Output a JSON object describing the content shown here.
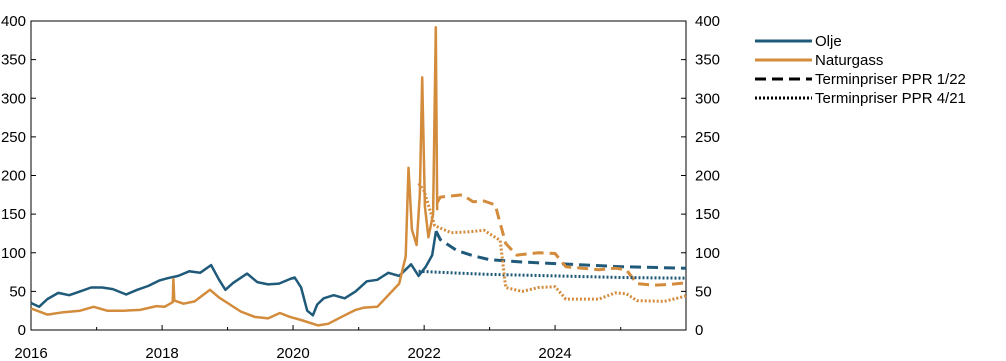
{
  "chart_data": {
    "type": "line",
    "title": "",
    "xlabel": "",
    "ylabel": "",
    "xlim": [
      "2016-01-01",
      "2025-12-31"
    ],
    "ylim": [
      0,
      400
    ],
    "ylim_right": [
      0,
      400
    ],
    "x_ticks": [
      "2016",
      "2018",
      "2020",
      "2022",
      "2024"
    ],
    "y_ticks": [
      "0",
      "50",
      "100",
      "150",
      "200",
      "250",
      "300",
      "350",
      "400"
    ],
    "grid": false,
    "legend_position": "top-right, outside plot",
    "legend": [
      {
        "label": "Olje",
        "color": "#1f5a7a",
        "style": "solid"
      },
      {
        "label": "Naturgass",
        "color": "#d38b3c",
        "style": "solid"
      },
      {
        "label": "Terminpriser PPR 1/22",
        "color": "#000000",
        "style": "dashed"
      },
      {
        "label": "Terminpriser PPR 4/21",
        "color": "#000000",
        "style": "dotted"
      }
    ],
    "series": [
      {
        "name": "Olje",
        "color": "#1f5a7a",
        "style": "solid",
        "points": [
          [
            "2016-01-01",
            35
          ],
          [
            "2016-02-15",
            30
          ],
          [
            "2016-04-01",
            40
          ],
          [
            "2016-06-01",
            48
          ],
          [
            "2016-08-01",
            45
          ],
          [
            "2016-10-01",
            50
          ],
          [
            "2016-12-01",
            55
          ],
          [
            "2017-02-01",
            55
          ],
          [
            "2017-04-01",
            53
          ],
          [
            "2017-06-15",
            46
          ],
          [
            "2017-08-15",
            52
          ],
          [
            "2017-10-15",
            57
          ],
          [
            "2017-12-15",
            64
          ],
          [
            "2018-02-01",
            67
          ],
          [
            "2018-04-01",
            70
          ],
          [
            "2018-06-01",
            76
          ],
          [
            "2018-08-01",
            74
          ],
          [
            "2018-10-01",
            84
          ],
          [
            "2018-11-15",
            65
          ],
          [
            "2018-12-20",
            52
          ],
          [
            "2019-02-01",
            61
          ],
          [
            "2019-04-20",
            73
          ],
          [
            "2019-06-15",
            62
          ],
          [
            "2019-08-15",
            59
          ],
          [
            "2019-10-15",
            60
          ],
          [
            "2019-12-15",
            66
          ],
          [
            "2020-01-10",
            68
          ],
          [
            "2020-02-15",
            55
          ],
          [
            "2020-03-20",
            25
          ],
          [
            "2020-04-21",
            19
          ],
          [
            "2020-05-15",
            33
          ],
          [
            "2020-06-20",
            41
          ],
          [
            "2020-08-15",
            45
          ],
          [
            "2020-10-15",
            41
          ],
          [
            "2020-12-15",
            50
          ],
          [
            "2021-02-15",
            63
          ],
          [
            "2021-04-15",
            65
          ],
          [
            "2021-06-15",
            74
          ],
          [
            "2021-08-15",
            70
          ],
          [
            "2021-10-20",
            85
          ],
          [
            "2021-12-01",
            70
          ],
          [
            "2022-01-10",
            82
          ],
          [
            "2022-02-15",
            97
          ],
          [
            "2022-03-08",
            128
          ]
        ]
      },
      {
        "name": "Naturgass",
        "color": "#d38b3c",
        "style": "solid",
        "points": [
          [
            "2016-01-01",
            28
          ],
          [
            "2016-04-01",
            20
          ],
          [
            "2016-07-01",
            23
          ],
          [
            "2016-10-01",
            25
          ],
          [
            "2016-12-15",
            30
          ],
          [
            "2017-03-01",
            25
          ],
          [
            "2017-06-01",
            25
          ],
          [
            "2017-09-01",
            26
          ],
          [
            "2017-12-01",
            31
          ],
          [
            "2018-01-15",
            30
          ],
          [
            "2018-03-01",
            36
          ],
          [
            "2018-03-05",
            66
          ],
          [
            "2018-03-10",
            38
          ],
          [
            "2018-05-01",
            34
          ],
          [
            "2018-07-01",
            37
          ],
          [
            "2018-09-25",
            52
          ],
          [
            "2018-11-15",
            42
          ],
          [
            "2019-01-01",
            35
          ],
          [
            "2019-03-15",
            24
          ],
          [
            "2019-06-01",
            17
          ],
          [
            "2019-08-15",
            15
          ],
          [
            "2019-10-20",
            22
          ],
          [
            "2019-12-15",
            17
          ],
          [
            "2020-02-15",
            13
          ],
          [
            "2020-05-20",
            6
          ],
          [
            "2020-07-15",
            8
          ],
          [
            "2020-10-15",
            19
          ],
          [
            "2020-12-15",
            26
          ],
          [
            "2021-02-01",
            29
          ],
          [
            "2021-04-15",
            30
          ],
          [
            "2021-06-15",
            45
          ],
          [
            "2021-08-15",
            60
          ],
          [
            "2021-09-20",
            95
          ],
          [
            "2021-10-06",
            210
          ],
          [
            "2021-10-25",
            130
          ],
          [
            "2021-11-20",
            110
          ],
          [
            "2021-12-08",
            175
          ],
          [
            "2021-12-21",
            327
          ],
          [
            "2022-01-05",
            160
          ],
          [
            "2022-01-25",
            120
          ],
          [
            "2022-02-20",
            150
          ],
          [
            "2022-03-07",
            392
          ],
          [
            "2022-03-15",
            155
          ]
        ]
      },
      {
        "name": "Olje terminpriser PPR 1/22",
        "color": "#1f5a7a",
        "style": "dashed",
        "points": [
          [
            "2022-03-08",
            128
          ],
          [
            "2022-04-01",
            117
          ],
          [
            "2022-07-01",
            103
          ],
          [
            "2022-10-01",
            96
          ],
          [
            "2023-01-01",
            91
          ],
          [
            "2023-07-01",
            88
          ],
          [
            "2024-01-01",
            86
          ],
          [
            "2024-07-01",
            84
          ],
          [
            "2025-01-01",
            82
          ],
          [
            "2025-12-31",
            80
          ]
        ]
      },
      {
        "name": "Naturgass terminpriser PPR 1/22",
        "color": "#d38b3c",
        "style": "dashed",
        "points": [
          [
            "2022-03-15",
            165
          ],
          [
            "2022-04-01",
            172
          ],
          [
            "2022-08-01",
            175
          ],
          [
            "2022-10-01",
            166
          ],
          [
            "2022-12-01",
            167
          ],
          [
            "2023-02-01",
            162
          ],
          [
            "2023-04-01",
            112
          ],
          [
            "2023-06-01",
            97
          ],
          [
            "2023-10-01",
            100
          ],
          [
            "2024-01-01",
            99
          ],
          [
            "2024-03-01",
            82
          ],
          [
            "2024-06-01",
            80
          ],
          [
            "2024-09-01",
            78
          ],
          [
            "2024-12-01",
            80
          ],
          [
            "2025-02-01",
            78
          ],
          [
            "2025-04-01",
            60
          ],
          [
            "2025-07-01",
            58
          ],
          [
            "2025-10-01",
            59
          ],
          [
            "2025-12-31",
            61
          ]
        ]
      },
      {
        "name": "Olje terminpriser PPR 4/21",
        "color": "#1f5a7a",
        "style": "dotted",
        "points": [
          [
            "2021-12-01",
            76
          ],
          [
            "2022-06-01",
            74
          ],
          [
            "2023-01-01",
            72
          ],
          [
            "2024-01-01",
            70
          ],
          [
            "2025-01-01",
            68
          ],
          [
            "2025-12-31",
            67
          ]
        ]
      },
      {
        "name": "Naturgass terminpriser PPR 4/21",
        "color": "#d38b3c",
        "style": "dotted",
        "points": [
          [
            "2021-12-01",
            190
          ],
          [
            "2022-01-01",
            180
          ],
          [
            "2022-03-01",
            135
          ],
          [
            "2022-06-01",
            126
          ],
          [
            "2022-09-01",
            127
          ],
          [
            "2022-12-01",
            129
          ],
          [
            "2023-03-01",
            116
          ],
          [
            "2023-04-01",
            55
          ],
          [
            "2023-07-01",
            50
          ],
          [
            "2023-10-01",
            55
          ],
          [
            "2024-01-01",
            56
          ],
          [
            "2024-03-01",
            40
          ],
          [
            "2024-09-01",
            40
          ],
          [
            "2024-12-01",
            48
          ],
          [
            "2025-02-01",
            47
          ],
          [
            "2025-04-01",
            38
          ],
          [
            "2025-09-01",
            37
          ],
          [
            "2025-12-31",
            44
          ]
        ]
      }
    ]
  }
}
